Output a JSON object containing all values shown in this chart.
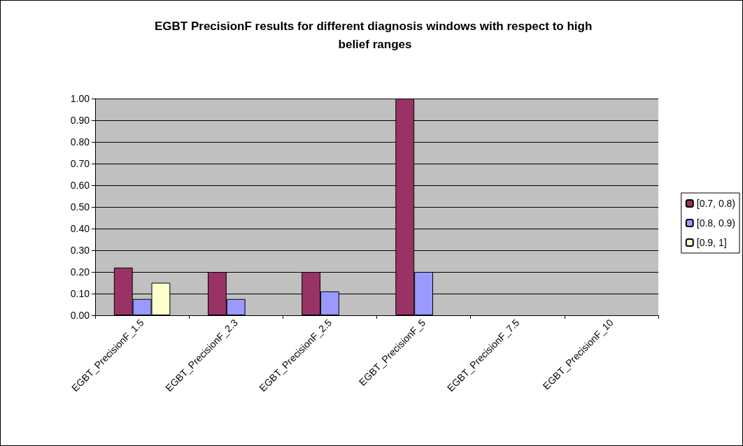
{
  "chart_data": {
    "type": "bar",
    "title": "EGBT PrecisionF results for different diagnosis windows with respect to high belief ranges",
    "categories": [
      "EGBT_PrecisionF_1.5",
      "EGBT_PrecisionF_2.3",
      "EGBT_PrecisionF_2.5",
      "EGBT_PrecisionF_5",
      "EGBT_PrecisionF_7.5",
      "EGBT_PrecisionF_10"
    ],
    "series": [
      {
        "name": "[0.7, 0.8)",
        "color": "#993366",
        "values": [
          0.22,
          0.2,
          0.2,
          1.0,
          null,
          null
        ]
      },
      {
        "name": "[0.8, 0.9)",
        "color": "#9999ff",
        "values": [
          0.075,
          0.075,
          0.11,
          0.2,
          null,
          null
        ]
      },
      {
        "name": "[0.9, 1]",
        "color": "#ffffcc",
        "values": [
          0.15,
          null,
          null,
          null,
          null,
          null
        ]
      }
    ],
    "ylim": [
      0,
      1
    ],
    "yticks": [
      {
        "value": 0,
        "label": "0.00"
      },
      {
        "value": 0.1,
        "label": "0.10"
      },
      {
        "value": 0.2,
        "label": "0.20"
      },
      {
        "value": 0.3,
        "label": "0.30"
      },
      {
        "value": 0.4,
        "label": "0.40"
      },
      {
        "value": 0.5,
        "label": "0.50"
      },
      {
        "value": 0.6,
        "label": "0.60"
      },
      {
        "value": 0.7,
        "label": "0.70"
      },
      {
        "value": 0.8,
        "label": "0.80"
      },
      {
        "value": 0.9,
        "label": "0.90"
      },
      {
        "value": 1,
        "label": "1.00"
      }
    ],
    "grid": "y",
    "legend": "right"
  }
}
